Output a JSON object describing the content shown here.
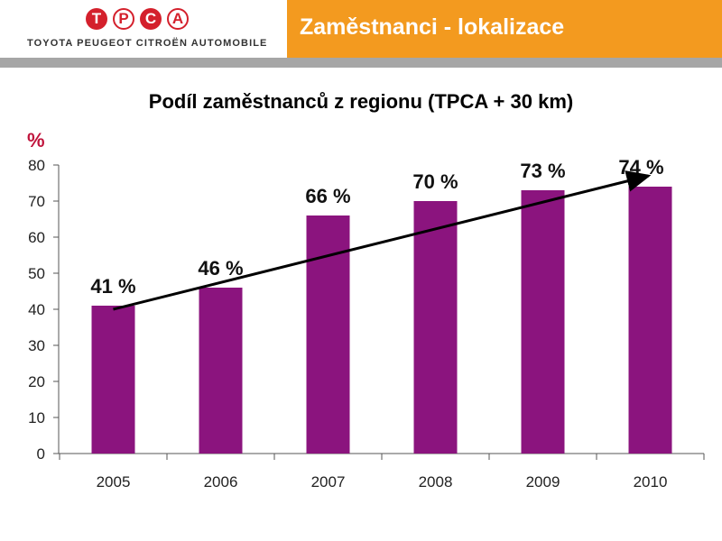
{
  "header": {
    "logo_text": "TPCA",
    "logo_subtitle": "TOYOTA PEUGEOT CITROËN AUTOMOBILE",
    "slide_title": "Zaměstnanci - lokalizace"
  },
  "colors": {
    "bar": "#8b147e",
    "header_orange": "#f39a1f",
    "logo_red": "#d4202c",
    "ylabel_red": "#c0143c",
    "divider_gray": "#a6a6a6"
  },
  "chart_data": {
    "type": "bar",
    "title": "Podíl zaměstnanců z regionu (TPCA + 30 km)",
    "ylabel": "%",
    "xlabel": "",
    "categories": [
      "2005",
      "2006",
      "2007",
      "2008",
      "2009",
      "2010"
    ],
    "values": [
      41,
      46,
      66,
      70,
      73,
      74
    ],
    "data_labels": [
      "41 %",
      "46 %",
      "66 %",
      "70 %",
      "73 %",
      "74 %"
    ],
    "ylim": [
      0,
      80
    ],
    "yticks": [
      0,
      10,
      20,
      30,
      40,
      50,
      60,
      70,
      80
    ],
    "grid": false,
    "legend": "none",
    "annotations": [
      {
        "type": "trend-arrow",
        "from": {
          "category": "2005",
          "value": 40
        },
        "to": {
          "category": "2010",
          "value": 77
        }
      }
    ]
  }
}
